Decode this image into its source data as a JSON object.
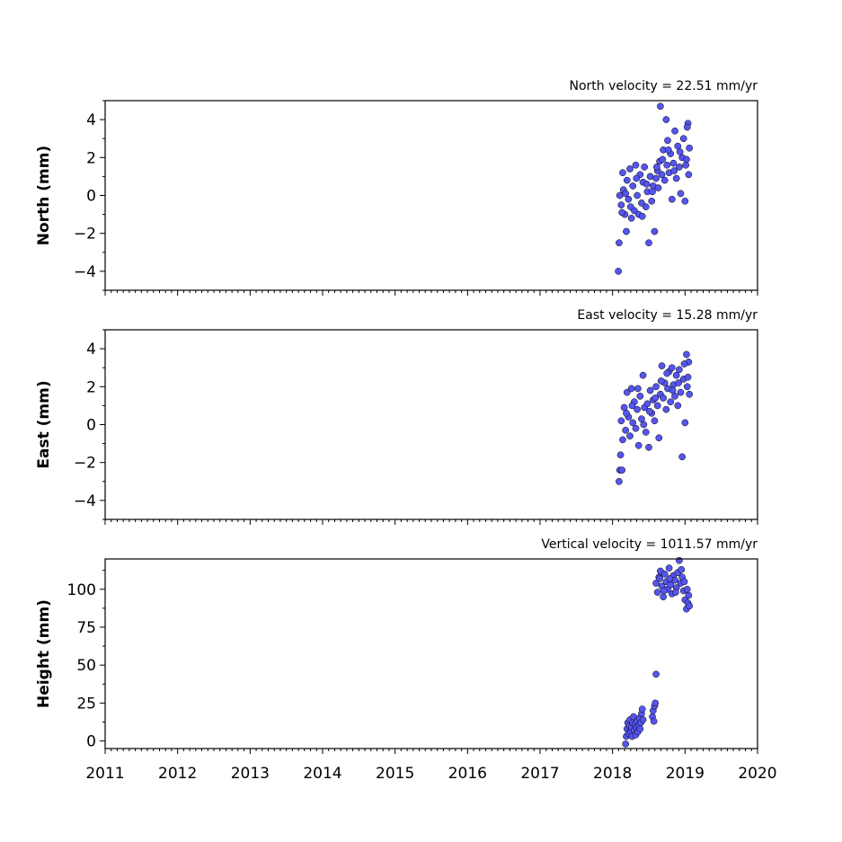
{
  "chart_data": [
    {
      "type": "scatter",
      "title": "North velocity = 22.51 mm/yr",
      "ylabel": "North (mm)",
      "xlabel": "",
      "xlim": [
        2011,
        2020
      ],
      "ylim": [
        -5,
        5
      ],
      "yticks": [
        -4,
        -2,
        0,
        2,
        4
      ],
      "ytick_labels": [
        "−4",
        "−2",
        "0",
        "2",
        "4"
      ],
      "show_xtick_labels": false,
      "series": [
        {
          "points": [
            [
              2018.08,
              -4.0
            ],
            [
              2018.09,
              -2.5
            ],
            [
              2018.1,
              0.0
            ],
            [
              2018.12,
              -0.5
            ],
            [
              2018.14,
              1.2
            ],
            [
              2018.15,
              0.3
            ],
            [
              2018.17,
              -1.0
            ],
            [
              2018.19,
              -1.9
            ],
            [
              2018.2,
              0.8
            ],
            [
              2018.22,
              -0.2
            ],
            [
              2018.24,
              1.4
            ],
            [
              2018.26,
              -1.2
            ],
            [
              2018.28,
              0.5
            ],
            [
              2018.3,
              -0.8
            ],
            [
              2018.32,
              1.6
            ],
            [
              2018.34,
              0.0
            ],
            [
              2018.36,
              -1.0
            ],
            [
              2018.38,
              1.1
            ],
            [
              2018.4,
              -0.4
            ],
            [
              2018.42,
              0.7
            ],
            [
              2018.44,
              1.5
            ],
            [
              2018.46,
              -0.6
            ],
            [
              2018.48,
              0.2
            ],
            [
              2018.5,
              -2.5
            ],
            [
              2018.52,
              1.0
            ],
            [
              2018.54,
              -0.3
            ],
            [
              2018.56,
              0.5
            ],
            [
              2018.58,
              -1.9
            ],
            [
              2018.6,
              0.9
            ],
            [
              2018.62,
              1.3
            ],
            [
              2018.63,
              0.4
            ],
            [
              2018.65,
              1.8
            ],
            [
              2018.66,
              4.7
            ],
            [
              2018.68,
              1.1
            ],
            [
              2018.7,
              2.4
            ],
            [
              2018.72,
              0.8
            ],
            [
              2018.74,
              4.0
            ],
            [
              2018.75,
              1.6
            ],
            [
              2018.76,
              2.9
            ],
            [
              2018.78,
              1.2
            ],
            [
              2018.8,
              2.2
            ],
            [
              2018.82,
              -0.2
            ],
            [
              2018.84,
              1.7
            ],
            [
              2018.86,
              3.4
            ],
            [
              2018.88,
              0.9
            ],
            [
              2018.9,
              2.6
            ],
            [
              2018.92,
              1.5
            ],
            [
              2018.94,
              0.1
            ],
            [
              2018.96,
              2.0
            ],
            [
              2018.98,
              3.0
            ],
            [
              2019.0,
              -0.3
            ],
            [
              2019.02,
              1.9
            ],
            [
              2019.04,
              3.8
            ],
            [
              2019.05,
              1.1
            ],
            [
              2019.06,
              2.5
            ],
            [
              2018.13,
              -0.9
            ],
            [
              2018.18,
              0.1
            ],
            [
              2018.25,
              -0.6
            ],
            [
              2018.33,
              0.9
            ],
            [
              2018.41,
              -1.1
            ],
            [
              2018.47,
              0.6
            ],
            [
              2018.55,
              0.2
            ],
            [
              2018.61,
              1.5
            ],
            [
              2018.69,
              1.9
            ],
            [
              2018.77,
              2.4
            ],
            [
              2018.85,
              1.3
            ],
            [
              2018.93,
              2.3
            ],
            [
              2019.01,
              1.6
            ],
            [
              2019.03,
              3.6
            ]
          ]
        }
      ]
    },
    {
      "type": "scatter",
      "title": "East velocity = 15.28 mm/yr",
      "ylabel": "East (mm)",
      "xlabel": "",
      "xlim": [
        2011,
        2020
      ],
      "ylim": [
        -5,
        5
      ],
      "yticks": [
        -4,
        -2,
        0,
        2,
        4
      ],
      "ytick_labels": [
        "−4",
        "−2",
        "0",
        "2",
        "4"
      ],
      "show_xtick_labels": false,
      "series": [
        {
          "points": [
            [
              2018.09,
              -3.0
            ],
            [
              2018.1,
              -2.4
            ],
            [
              2018.11,
              -1.6
            ],
            [
              2018.12,
              0.2
            ],
            [
              2018.14,
              -0.8
            ],
            [
              2018.16,
              0.9
            ],
            [
              2018.18,
              -0.3
            ],
            [
              2018.2,
              1.7
            ],
            [
              2018.22,
              0.4
            ],
            [
              2018.24,
              -0.6
            ],
            [
              2018.26,
              1.9
            ],
            [
              2018.28,
              0.1
            ],
            [
              2018.3,
              1.2
            ],
            [
              2018.32,
              -0.2
            ],
            [
              2018.34,
              0.8
            ],
            [
              2018.36,
              -1.1
            ],
            [
              2018.38,
              1.5
            ],
            [
              2018.4,
              0.3
            ],
            [
              2018.42,
              2.6
            ],
            [
              2018.44,
              0.9
            ],
            [
              2018.46,
              -0.4
            ],
            [
              2018.48,
              1.1
            ],
            [
              2018.5,
              -1.2
            ],
            [
              2018.52,
              1.8
            ],
            [
              2018.54,
              0.6
            ],
            [
              2018.56,
              1.3
            ],
            [
              2018.58,
              0.2
            ],
            [
              2018.6,
              2.0
            ],
            [
              2018.62,
              1.0
            ],
            [
              2018.64,
              -0.7
            ],
            [
              2018.66,
              1.6
            ],
            [
              2018.68,
              3.1
            ],
            [
              2018.7,
              1.4
            ],
            [
              2018.72,
              2.2
            ],
            [
              2018.74,
              0.8
            ],
            [
              2018.76,
              1.9
            ],
            [
              2018.78,
              2.8
            ],
            [
              2018.8,
              1.2
            ],
            [
              2018.82,
              3.0
            ],
            [
              2018.84,
              2.1
            ],
            [
              2018.86,
              1.5
            ],
            [
              2018.88,
              2.6
            ],
            [
              2018.9,
              1.0
            ],
            [
              2018.92,
              2.9
            ],
            [
              2018.94,
              1.7
            ],
            [
              2018.96,
              -1.7
            ],
            [
              2018.98,
              2.4
            ],
            [
              2019.0,
              0.1
            ],
            [
              2019.02,
              3.7
            ],
            [
              2019.03,
              2.0
            ],
            [
              2019.05,
              3.3
            ],
            [
              2019.06,
              1.6
            ],
            [
              2018.13,
              -2.4
            ],
            [
              2018.19,
              0.6
            ],
            [
              2018.27,
              1.0
            ],
            [
              2018.35,
              1.9
            ],
            [
              2018.43,
              0.0
            ],
            [
              2018.51,
              0.7
            ],
            [
              2018.59,
              1.4
            ],
            [
              2018.67,
              2.3
            ],
            [
              2018.75,
              2.7
            ],
            [
              2018.83,
              1.8
            ],
            [
              2018.91,
              2.2
            ],
            [
              2018.99,
              3.2
            ],
            [
              2019.04,
              2.5
            ]
          ]
        }
      ]
    },
    {
      "type": "scatter",
      "title": "Vertical velocity = 1011.57 mm/yr",
      "ylabel": "Height (mm)",
      "xlabel": "",
      "xlim": [
        2011,
        2020
      ],
      "ylim": [
        -5,
        120
      ],
      "yticks": [
        0,
        25,
        50,
        75,
        100
      ],
      "ytick_labels": [
        "0",
        "25",
        "50",
        "75",
        "100"
      ],
      "xticks": [
        2011,
        2012,
        2013,
        2014,
        2015,
        2016,
        2017,
        2018,
        2019,
        2020
      ],
      "xtick_labels": [
        "2011",
        "2012",
        "2013",
        "2014",
        "2015",
        "2016",
        "2017",
        "2018",
        "2019",
        "2020"
      ],
      "show_xtick_labels": true,
      "series": [
        {
          "points": [
            [
              2018.18,
              -2.0
            ],
            [
              2018.19,
              3.0
            ],
            [
              2018.2,
              8.0
            ],
            [
              2018.21,
              12.0
            ],
            [
              2018.22,
              5.0
            ],
            [
              2018.23,
              10.0
            ],
            [
              2018.24,
              14.0
            ],
            [
              2018.25,
              6.0
            ],
            [
              2018.26,
              9.0
            ],
            [
              2018.27,
              3.0
            ],
            [
              2018.28,
              12.0
            ],
            [
              2018.29,
              16.0
            ],
            [
              2018.3,
              7.0
            ],
            [
              2018.31,
              11.0
            ],
            [
              2018.32,
              4.0
            ],
            [
              2018.33,
              9.0
            ],
            [
              2018.34,
              13.0
            ],
            [
              2018.35,
              6.0
            ],
            [
              2018.36,
              10.0
            ],
            [
              2018.37,
              15.0
            ],
            [
              2018.38,
              8.0
            ],
            [
              2018.39,
              12.0
            ],
            [
              2018.4,
              18.0
            ],
            [
              2018.41,
              21.0
            ],
            [
              2018.42,
              14.0
            ],
            [
              2018.55,
              16.0
            ],
            [
              2018.56,
              20.0
            ],
            [
              2018.57,
              13.0
            ],
            [
              2018.58,
              23.0
            ],
            [
              2018.59,
              25.0
            ],
            [
              2018.6,
              44.0
            ],
            [
              2018.6,
              104.0
            ],
            [
              2018.62,
              98.0
            ],
            [
              2018.64,
              108.0
            ],
            [
              2018.66,
              112.0
            ],
            [
              2018.68,
              102.0
            ],
            [
              2018.7,
              95.0
            ],
            [
              2018.72,
              110.0
            ],
            [
              2018.74,
              105.0
            ],
            [
              2018.76,
              100.0
            ],
            [
              2018.78,
              114.0
            ],
            [
              2018.8,
              103.0
            ],
            [
              2018.82,
              97.0
            ],
            [
              2018.84,
              109.0
            ],
            [
              2018.86,
              106.0
            ],
            [
              2018.88,
              101.0
            ],
            [
              2018.9,
              111.0
            ],
            [
              2018.92,
              119.0
            ],
            [
              2018.94,
              104.0
            ],
            [
              2018.96,
              108.0
            ],
            [
              2018.98,
              99.0
            ],
            [
              2019.0,
              93.0
            ],
            [
              2019.02,
              87.0
            ],
            [
              2019.03,
              100.0
            ],
            [
              2019.04,
              91.0
            ],
            [
              2019.05,
              96.0
            ],
            [
              2019.06,
              89.0
            ],
            [
              2018.65,
              107.0
            ],
            [
              2018.71,
              99.0
            ],
            [
              2018.79,
              107.0
            ],
            [
              2018.87,
              98.0
            ],
            [
              2018.95,
              113.0
            ],
            [
              2018.99,
              105.0
            ]
          ]
        }
      ]
    }
  ],
  "colors": {
    "marker_fill": "#5555ee",
    "marker_edge": "#000000",
    "axis": "#000000",
    "background": "#ffffff"
  }
}
